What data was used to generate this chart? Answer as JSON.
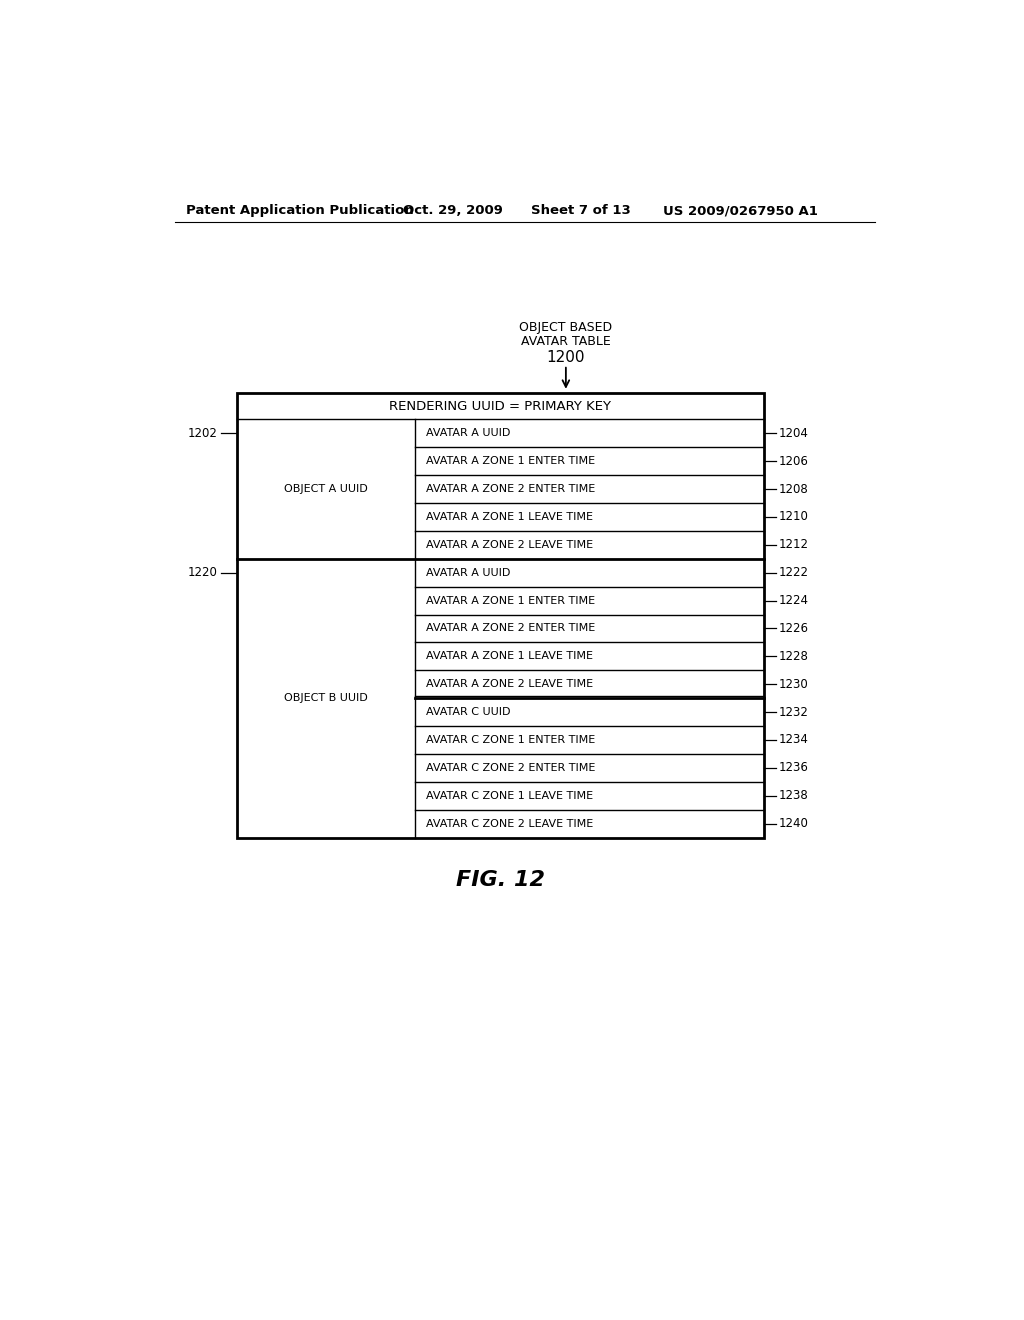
{
  "header_text": "Patent Application Publication",
  "date_text": "Oct. 29, 2009",
  "sheet_text": "Sheet 7 of 13",
  "patent_text": "US 2009/0267950 A1",
  "fig_label": "FIG. 12",
  "table_title_line1": "OBJECT BASED",
  "table_title_line2": "AVATAR TABLE",
  "table_number": "1200",
  "header_row": "RENDERING UUID = PRIMARY KEY",
  "col1_label_A": "OBJECT A UUID",
  "col1_label_B": "OBJECT B UUID",
  "left_label_A": "1202",
  "left_label_B": "1220",
  "rows_A": [
    {
      "label": "1204",
      "text": "AVATAR A UUID"
    },
    {
      "label": "1206",
      "text": "AVATAR A ZONE 1 ENTER TIME"
    },
    {
      "label": "1208",
      "text": "AVATAR A ZONE 2 ENTER TIME"
    },
    {
      "label": "1210",
      "text": "AVATAR A ZONE 1 LEAVE TIME"
    },
    {
      "label": "1212",
      "text": "AVATAR A ZONE 2 LEAVE TIME"
    }
  ],
  "rows_B": [
    {
      "label": "1222",
      "text": "AVATAR A UUID"
    },
    {
      "label": "1224",
      "text": "AVATAR A ZONE 1 ENTER TIME"
    },
    {
      "label": "1226",
      "text": "AVATAR A ZONE 2 ENTER TIME"
    },
    {
      "label": "1228",
      "text": "AVATAR A ZONE 1 LEAVE TIME"
    },
    {
      "label": "1230",
      "text": "AVATAR A ZONE 2 LEAVE TIME"
    },
    {
      "label": "1232",
      "text": "AVATAR C UUID"
    },
    {
      "label": "1234",
      "text": "AVATAR C ZONE 1 ENTER TIME"
    },
    {
      "label": "1236",
      "text": "AVATAR C ZONE 2 ENTER TIME"
    },
    {
      "label": "1238",
      "text": "AVATAR C ZONE 1 LEAVE TIME"
    },
    {
      "label": "1240",
      "text": "AVATAR C ZONE 2 LEAVE TIME"
    }
  ],
  "bg_color": "#ffffff",
  "text_color": "#000000",
  "line_color": "#000000",
  "groupB_split": 5,
  "header_fontsize": 9.5,
  "cell_fontsize": 8.0,
  "label_fontsize": 8.5,
  "title_fontsize": 9.0,
  "number_fontsize": 11.0,
  "fig_fontsize": 16.0
}
